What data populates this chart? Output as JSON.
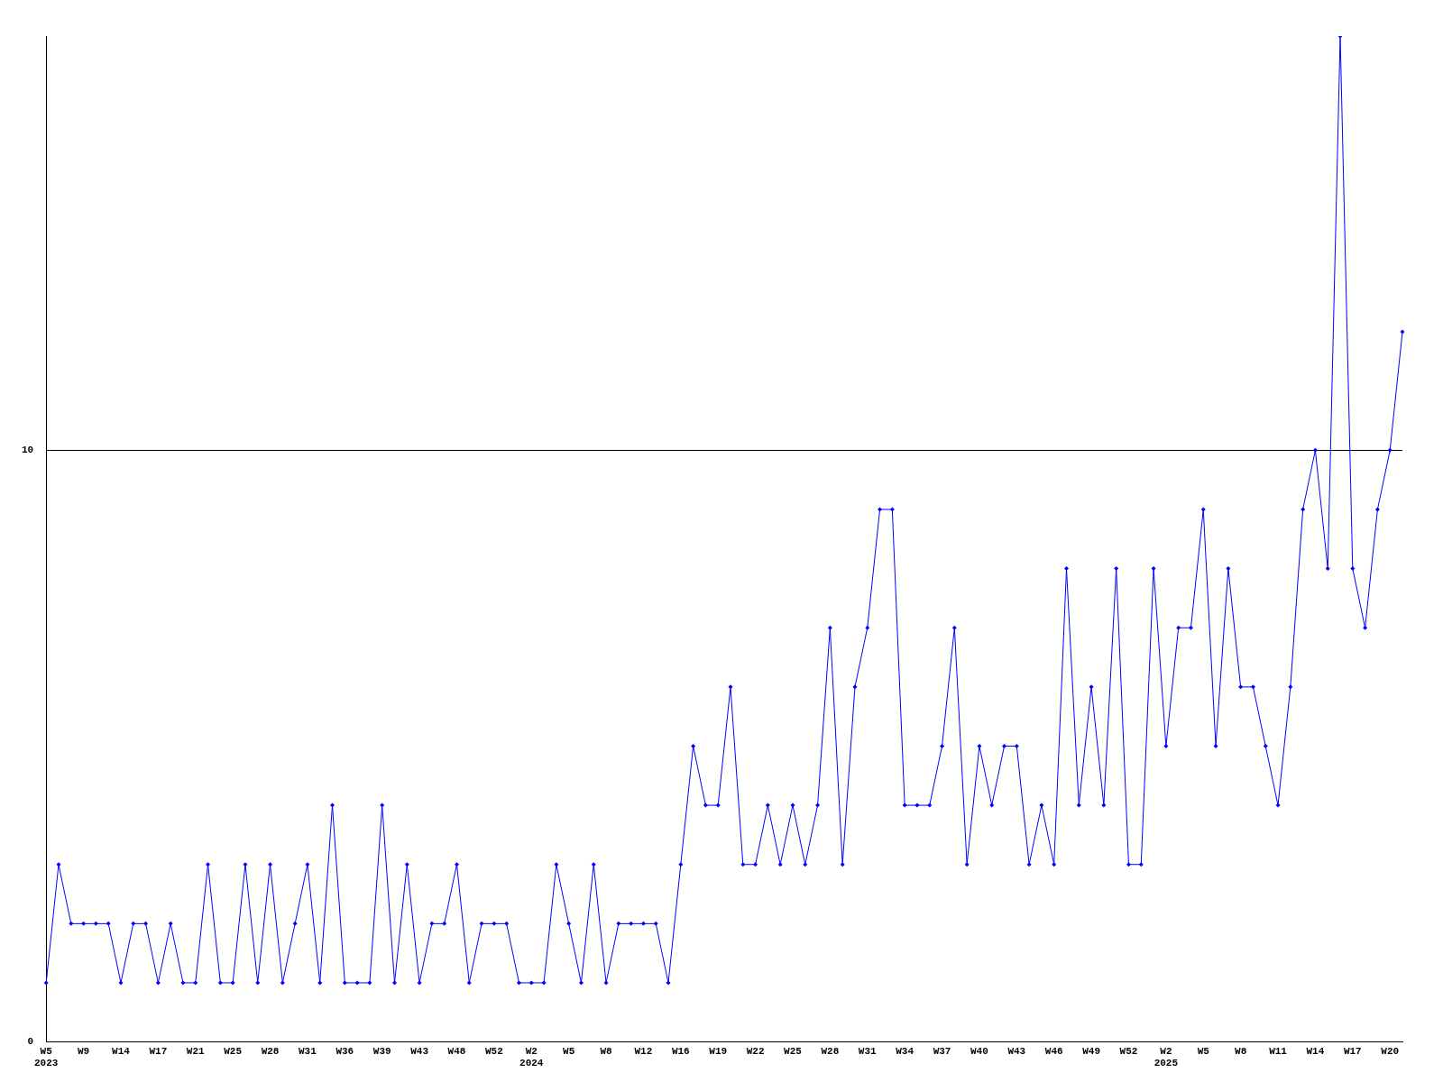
{
  "chart_data": {
    "type": "line",
    "categories": [
      "W5\n2023",
      null,
      null,
      "W9",
      null,
      null,
      "W14",
      null,
      null,
      "W17",
      null,
      null,
      "W21",
      null,
      null,
      "W25",
      null,
      null,
      "W28",
      null,
      null,
      "W31",
      null,
      null,
      "W36",
      null,
      null,
      "W39",
      null,
      null,
      "W43",
      null,
      null,
      "W48",
      null,
      null,
      "W52",
      null,
      null,
      "W2\n2024",
      null,
      null,
      "W5",
      null,
      null,
      "W8",
      null,
      null,
      "W12",
      null,
      null,
      "W16",
      null,
      null,
      "W19",
      null,
      null,
      "W22",
      null,
      null,
      "W25",
      null,
      null,
      "W28",
      null,
      null,
      "W31",
      null,
      null,
      "W34",
      null,
      null,
      "W37",
      null,
      null,
      "W40",
      null,
      null,
      "W43",
      null,
      null,
      "W46",
      null,
      null,
      "W49",
      null,
      null,
      "W52",
      null,
      null,
      "W2\n2025",
      null,
      null,
      "W5",
      null,
      null,
      "W8",
      null,
      null,
      "W11",
      null,
      null,
      "W14",
      null,
      null,
      "W17",
      null,
      null,
      "W20",
      null
    ],
    "series": [
      {
        "color": "#0000ff",
        "values": [
          1,
          3,
          2,
          2,
          2,
          2,
          1,
          2,
          2,
          1,
          2,
          1,
          1,
          3,
          1,
          1,
          3,
          1,
          3,
          1,
          2,
          3,
          1,
          4,
          1,
          1,
          1,
          4,
          1,
          3,
          1,
          2,
          2,
          3,
          1,
          2,
          2,
          2,
          1,
          1,
          1,
          3,
          2,
          1,
          3,
          1,
          2,
          2,
          2,
          2,
          1,
          3,
          5,
          4,
          4,
          6,
          3,
          3,
          4,
          3,
          4,
          3,
          4,
          7,
          3,
          6,
          7,
          9,
          9,
          4,
          4,
          4,
          5,
          7,
          3,
          5,
          4,
          5,
          5,
          3,
          4,
          3,
          8,
          4,
          6,
          4,
          8,
          3,
          3,
          8,
          5,
          7,
          7,
          9,
          5,
          8,
          6,
          6,
          5,
          4,
          6,
          9,
          10,
          8,
          17,
          8,
          7,
          9,
          10,
          12
        ]
      }
    ],
    "ylim": [
      0,
      17
    ],
    "yticks": [
      0,
      10
    ],
    "grid": "y",
    "marker": "diamond",
    "legend": false
  }
}
